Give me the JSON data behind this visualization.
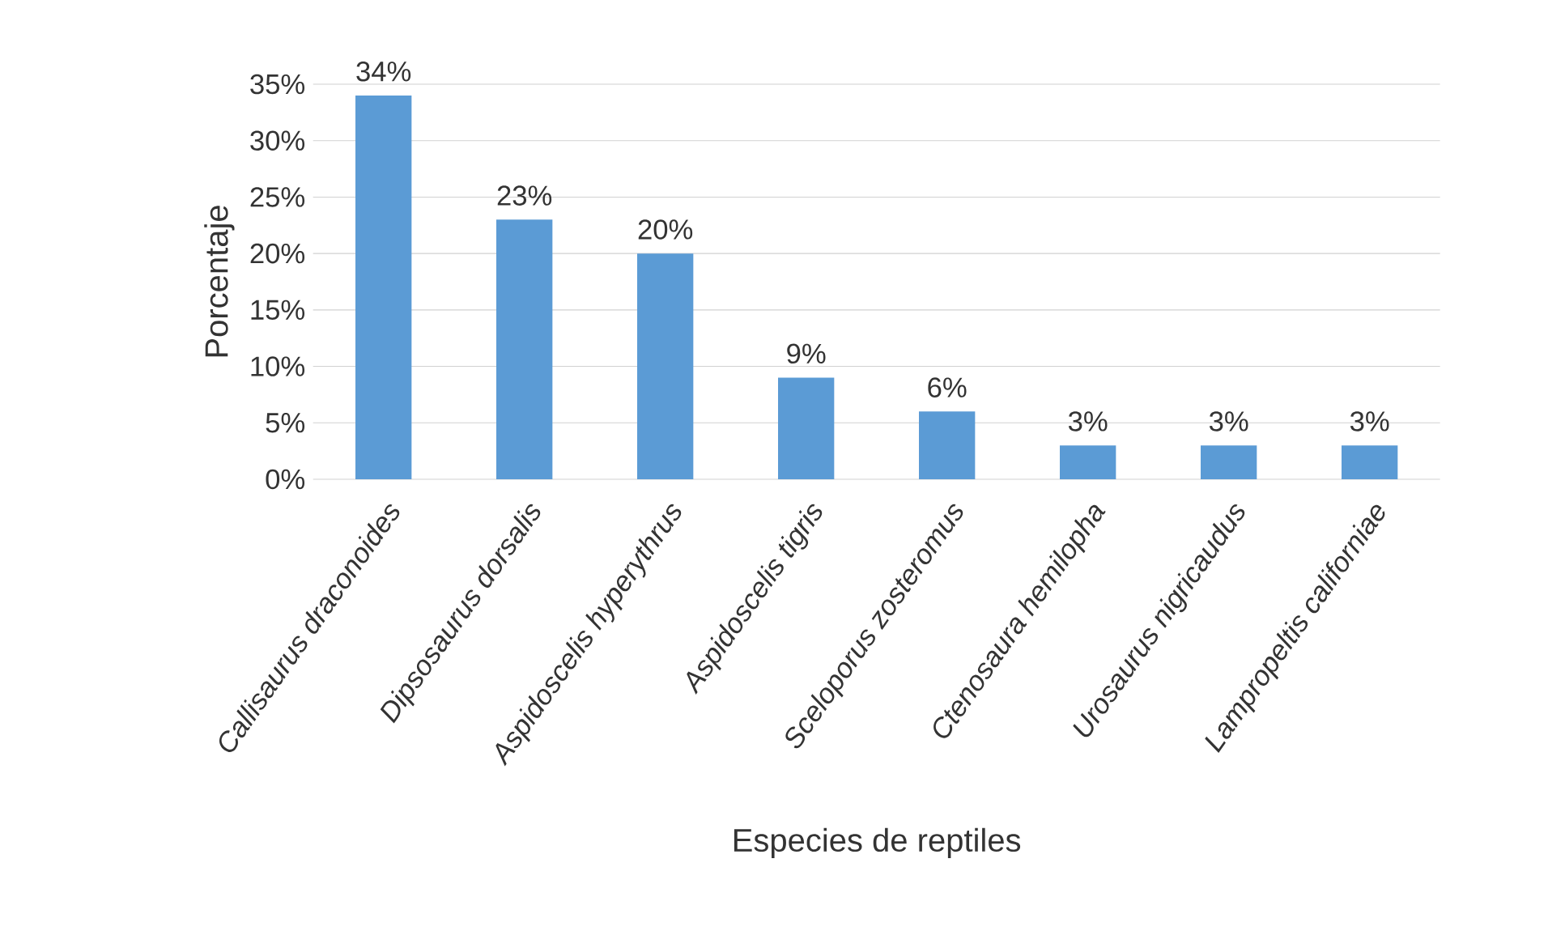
{
  "chart_data": {
    "type": "bar",
    "xlabel": "Especies de reptiles",
    "ylabel": "Porcentaje",
    "categories": [
      "Callisaurus draconoides",
      "Dipsosaurus dorsalis",
      "Aspidoscelis hyperythrus",
      "Aspidoscelis tigris",
      "Sceloporus zosteromus",
      "Ctenosaura hemilopha",
      "Urosaurus nigricaudus",
      "Lampropeltis californiae"
    ],
    "values": [
      34,
      23,
      20,
      9,
      6,
      3,
      3,
      3
    ],
    "value_labels": [
      "34%",
      "23%",
      "20%",
      "9%",
      "6%",
      "3%",
      "3%",
      "3%"
    ],
    "color": "#5b9bd5",
    "ylim": [
      0,
      35
    ],
    "yticks": [
      {
        "value": 0,
        "label": "0%"
      },
      {
        "value": 5,
        "label": "5%"
      },
      {
        "value": 10,
        "label": "10%"
      },
      {
        "value": 15,
        "label": "15%"
      },
      {
        "value": 20,
        "label": "20%"
      },
      {
        "value": 25,
        "label": "25%"
      },
      {
        "value": 30,
        "label": "30%"
      },
      {
        "value": 35,
        "label": "35%"
      }
    ],
    "grid": "y"
  }
}
